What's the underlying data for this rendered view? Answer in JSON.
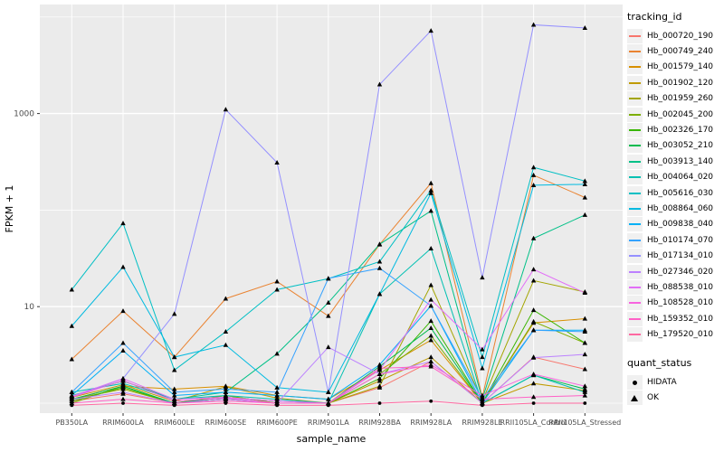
{
  "chart_data": {
    "type": "line",
    "title": "",
    "xlabel": "sample_name",
    "ylabel": "FPKM + 1",
    "y_scale": "log10",
    "y_ticks": [
      10,
      1000
    ],
    "y_minor_gridlines": [
      1,
      100,
      10000
    ],
    "ylim": [
      0.85,
      13000
    ],
    "legend_position": "right",
    "panel_bg": "#EBEBEB",
    "grid_color": "#FFFFFF",
    "marker_color": "#000000",
    "axis_text_color": "#4D4D4D",
    "categories": [
      "PB350LA",
      "RRIM600LA",
      "RRIM600LE",
      "RRIM600SE",
      "RRIM600PE",
      "RRIM901LA",
      "RRIM928BA",
      "RRIM928LA",
      "RRIM928LE",
      "RRII105LA_Control",
      "RRII105LA_Stressed"
    ],
    "legend": {
      "tracking_title": "tracking_id",
      "status_title": "quant_status",
      "status_items": [
        {
          "label": "HIDATA",
          "shape": "circle"
        },
        {
          "label": "OK",
          "shape": "triangle"
        }
      ]
    },
    "series": [
      {
        "name": "Hb_000720_190",
        "color": "#F8766D",
        "status": "OK",
        "values": [
          1.05,
          1.25,
          1.0,
          1.1,
          1.0,
          1.0,
          1.45,
          2.7,
          1.0,
          3.0,
          2.25
        ]
      },
      {
        "name": "Hb_000749_240",
        "color": "#EA8331",
        "status": "OK",
        "values": [
          2.85,
          9.0,
          3.0,
          12.1,
          18.2,
          8.0,
          44,
          190,
          1.15,
          230,
          135
        ]
      },
      {
        "name": "Hb_001579_140",
        "color": "#D89000",
        "status": "OK",
        "values": [
          1.1,
          1.5,
          1.4,
          1.5,
          1.2,
          1.1,
          2.2,
          4.5,
          1.0,
          6.8,
          7.5
        ]
      },
      {
        "name": "Hb_001902_120",
        "color": "#C09B00",
        "status": "OK",
        "values": [
          1.15,
          1.55,
          1.05,
          1.48,
          1.13,
          1.0,
          1.7,
          3.0,
          1.0,
          1.6,
          1.35
        ]
      },
      {
        "name": "Hb_001959_260",
        "color": "#A3A500",
        "status": "OK",
        "values": [
          1.1,
          1.4,
          1.0,
          1.2,
          1.0,
          1.0,
          1.5,
          16.7,
          1.05,
          18.6,
          14.2
        ]
      },
      {
        "name": "Hb_002045_200",
        "color": "#7CAE00",
        "status": "OK",
        "values": [
          1.0,
          1.5,
          1.0,
          1.2,
          1.0,
          1.0,
          2.0,
          5.0,
          1.0,
          7.0,
          4.2
        ]
      },
      {
        "name": "Hb_002326_170",
        "color": "#39B600",
        "status": "OK",
        "values": [
          1.05,
          1.45,
          1.0,
          1.1,
          1.0,
          1.0,
          1.8,
          7.1,
          1.0,
          9.2,
          4.2
        ]
      },
      {
        "name": "Hb_003052_210",
        "color": "#00BB4E",
        "status": "OK",
        "values": [
          1.1,
          1.5,
          1.0,
          1.15,
          1.05,
          1.0,
          2.4,
          6.0,
          1.0,
          1.95,
          1.4
        ]
      },
      {
        "name": "Hb_003913_140",
        "color": "#00C087",
        "status": "OK",
        "values": [
          1.2,
          1.7,
          1.1,
          1.3,
          3.25,
          11.0,
          44.3,
          98,
          1.1,
          51,
          89
        ]
      },
      {
        "name": "Hb_004064_020",
        "color": "#00C0B2",
        "status": "OK",
        "values": [
          1.3,
          1.6,
          1.1,
          1.2,
          1.1,
          1.0,
          13.5,
          40,
          1.0,
          1.95,
          1.3
        ]
      },
      {
        "name": "Hb_005616_030",
        "color": "#00BFC4",
        "status": "OK",
        "values": [
          15,
          73,
          2.2,
          5.5,
          15,
          19.5,
          29.3,
          160,
          3.0,
          277,
          200
        ]
      },
      {
        "name": "Hb_008864_060",
        "color": "#00BAE0",
        "status": "OK",
        "values": [
          6.3,
          25.7,
          3.0,
          4.0,
          1.45,
          1.3,
          13.5,
          150,
          2.3,
          181,
          185
        ]
      },
      {
        "name": "Hb_009838_040",
        "color": "#00B0F6",
        "status": "OK",
        "values": [
          1.2,
          3.5,
          1.2,
          1.3,
          1.2,
          1.1,
          2.5,
          10.2,
          1.0,
          5.7,
          5.7
        ]
      },
      {
        "name": "Hb_010174_070",
        "color": "#35A2FF",
        "status": "OK",
        "values": [
          1.3,
          4.2,
          1.3,
          1.4,
          1.3,
          19.6,
          25,
          10.2,
          1.1,
          5.7,
          5.5
        ]
      },
      {
        "name": "Hb_017134_010",
        "color": "#9590FF",
        "status": "OK",
        "values": [
          1.15,
          1.8,
          8.4,
          1100,
          310,
          1.3,
          2000,
          7200,
          20,
          8300,
          7700
        ]
      },
      {
        "name": "Hb_027346_020",
        "color": "#BC81FF",
        "status": "OK",
        "values": [
          1.1,
          1.3,
          1.0,
          1.1,
          1.0,
          3.8,
          2.0,
          2.7,
          1.0,
          2.96,
          3.2
        ]
      },
      {
        "name": "Hb_088538_010",
        "color": "#E26EF7",
        "status": "OK",
        "values": [
          1.18,
          1.8,
          1.1,
          1.15,
          1.05,
          1.0,
          2.2,
          11.8,
          3.6,
          24.3,
          13.9
        ]
      },
      {
        "name": "Hb_108528_010",
        "color": "#F863DF",
        "status": "OK",
        "values": [
          1.15,
          1.72,
          1.05,
          1.13,
          1.0,
          1.0,
          2.0,
          2.5,
          1.2,
          2.0,
          1.5
        ]
      },
      {
        "name": "Hb_159352_010",
        "color": "#FF61C7",
        "status": "OK",
        "values": [
          1.0,
          1.1,
          1.0,
          1.05,
          1.0,
          1.0,
          2.3,
          2.4,
          1.1,
          1.16,
          1.2
        ]
      },
      {
        "name": "Hb_179520_010",
        "color": "#FF68A1",
        "status": "HIDATA",
        "values": [
          0.95,
          1.0,
          0.95,
          1.0,
          0.95,
          0.95,
          1.0,
          1.05,
          0.95,
          1.0,
          1.0
        ]
      }
    ]
  }
}
